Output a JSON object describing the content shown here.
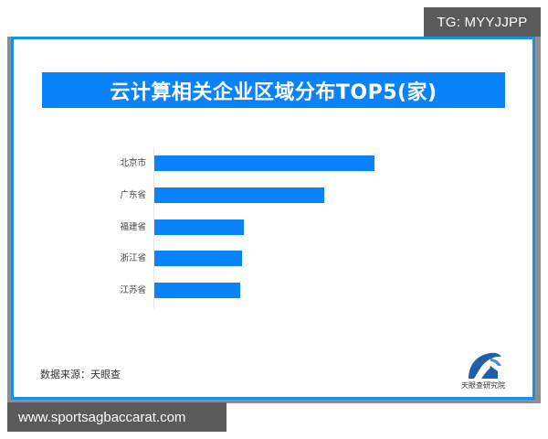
{
  "watermark_top": "TG: MYYJJPP",
  "watermark_bottom": "www.sportsagbaccarat.com",
  "source_text": "数据来源：天眼查",
  "logo_text": "天眼查研究院",
  "colors": {
    "bar": "#0a82fa",
    "title_banner": "#0a82fa",
    "card_border": "#1a8fe8",
    "badge_bg": "#5a5a5a"
  },
  "chart_data": {
    "type": "bar",
    "orientation": "horizontal",
    "title": "云计算相关企业区域分布TOP5(家)",
    "categories": [
      "北京市",
      "广东省",
      "福建省",
      "浙江省",
      "江苏省"
    ],
    "values": [
      241,
      186,
      98,
      96,
      94
    ],
    "values_note": "Relative bar lengths in pixels; no numeric axis or data labels shown",
    "xlabel": "",
    "ylabel": "",
    "grid": false,
    "legend": null,
    "source": "数据来源：天眼查"
  }
}
